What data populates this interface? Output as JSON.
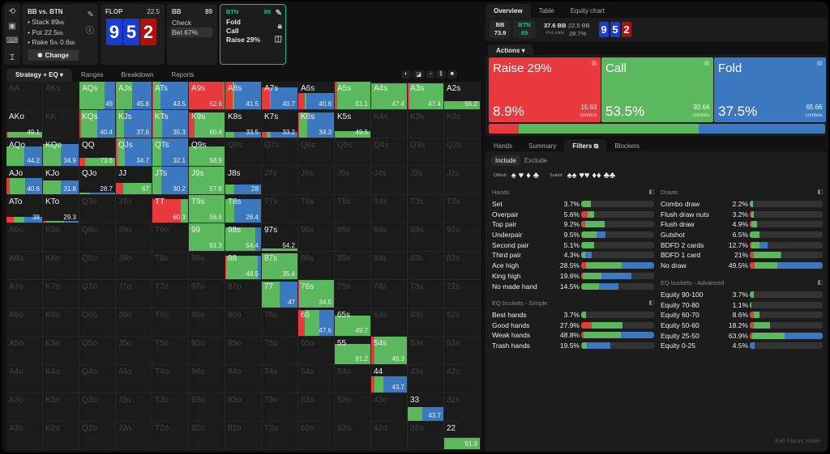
{
  "colors": {
    "raise": "#e8393f",
    "call": "#5cb85c",
    "fold": "#3b78c0",
    "accent": "#1bb597"
  },
  "header": {
    "spot_title": "BB vs. BTN",
    "stack": "Stack 89",
    "stack_unit": "bb",
    "pot": "Pot 22.5",
    "pot_unit": "bb",
    "rake": "Rake 5",
    "rake_pct": "%",
    "rake_val": " 0.6",
    "rake_unit": "bb",
    "change_label": "Change",
    "street": "FLOP",
    "street_pot": "22.5",
    "board": [
      {
        "rank": "9",
        "suit": "diamond"
      },
      {
        "rank": "5",
        "suit": "diamond"
      },
      {
        "rank": "2",
        "suit": "heart"
      }
    ],
    "bb": {
      "name": "BB",
      "stack": "89",
      "actions": [
        "Check",
        "Bet 67%"
      ],
      "selected": "Bet 67%"
    },
    "btn": {
      "name": "BTN",
      "stack": "89",
      "actions": [
        "Fold",
        "Call",
        "Raise 29%"
      ]
    }
  },
  "tabs": [
    "Strategy + EQ",
    "Ranges",
    "Breakdown",
    "Reports"
  ],
  "matrix": {
    "rows": [
      [
        "AA",
        "AKs",
        "AQs",
        "AJs",
        "ATs",
        "A9s",
        "A8s",
        "A7s",
        "A6s",
        "A5s",
        "A4s",
        "A3s",
        "A2s"
      ],
      [
        "AKo",
        "KK",
        "KQs",
        "KJs",
        "KTs",
        "K9s",
        "K8s",
        "K7s",
        "K6s",
        "K5s",
        "K4s",
        "K3s",
        "K2s"
      ],
      [
        "AQo",
        "KQo",
        "QQ",
        "QJs",
        "QTs",
        "Q9s",
        "Q8s",
        "Q7s",
        "Q6s",
        "Q5s",
        "Q4s",
        "Q3s",
        "Q2s"
      ],
      [
        "AJo",
        "KJo",
        "QJo",
        "JJ",
        "JTs",
        "J9s",
        "J8s",
        "J7s",
        "J6s",
        "J5s",
        "J4s",
        "J3s",
        "J2s"
      ],
      [
        "ATo",
        "KTo",
        "QTo",
        "JTo",
        "TT",
        "T9s",
        "T8s",
        "T7s",
        "T6s",
        "T5s",
        "T4s",
        "T3s",
        "T2s"
      ],
      [
        "A9o",
        "K9o",
        "Q9o",
        "J9o",
        "T9o",
        "99",
        "98s",
        "97s",
        "96s",
        "95s",
        "94s",
        "93s",
        "92s"
      ],
      [
        "A8o",
        "K8o",
        "Q8o",
        "J8o",
        "T8o",
        "98o",
        "88",
        "87s",
        "86s",
        "85s",
        "84s",
        "83s",
        "82s"
      ],
      [
        "A7o",
        "K7o",
        "Q7o",
        "J7o",
        "T7o",
        "97o",
        "87o",
        "77",
        "76s",
        "75s",
        "74s",
        "73s",
        "72s"
      ],
      [
        "A6o",
        "K6o",
        "Q6o",
        "J6o",
        "T6o",
        "96o",
        "86o",
        "76o",
        "66",
        "65s",
        "64s",
        "63s",
        "62s"
      ],
      [
        "A5o",
        "K5o",
        "Q5o",
        "J5o",
        "T5o",
        "95o",
        "85o",
        "75o",
        "65o",
        "55",
        "54s",
        "53s",
        "52s"
      ],
      [
        "A4o",
        "K4o",
        "Q4o",
        "J4o",
        "T4o",
        "94o",
        "84o",
        "74o",
        "64o",
        "54o",
        "44",
        "43s",
        "42s"
      ],
      [
        "A3o",
        "K3o",
        "Q3o",
        "J3o",
        "T3o",
        "93o",
        "83o",
        "73o",
        "63o",
        "53o",
        "43o",
        "33",
        "32s"
      ],
      [
        "A2o",
        "K2o",
        "Q2o",
        "J2o",
        "T2o",
        "92o",
        "82o",
        "72o",
        "62o",
        "52o",
        "42o",
        "32o",
        "22"
      ]
    ],
    "hands": {
      "AQs": {
        "w": 1,
        "mix": [
          0,
          0.7,
          0.3
        ],
        "eq": "49"
      },
      "AJs": {
        "w": 1,
        "mix": [
          0,
          0.45,
          0.55
        ],
        "eq": "45.8"
      },
      "ATs": {
        "w": 1,
        "mix": [
          0.02,
          0.2,
          0.78
        ],
        "eq": "43.5"
      },
      "A9s": {
        "w": 1,
        "mix": [
          0.97,
          0.03,
          0
        ],
        "eq": "62.6"
      },
      "A8s": {
        "w": 1,
        "mix": [
          0.2,
          0.06,
          0.74
        ],
        "eq": "41.5"
      },
      "A7s": {
        "w": 0.8,
        "mix": [
          0.22,
          0.03,
          0.75
        ],
        "eq": "40.7"
      },
      "A6s": {
        "w": 0.6,
        "mix": [
          0.18,
          0.05,
          0.77
        ],
        "eq": "40.6"
      },
      "A5s": {
        "w": 1,
        "mix": [
          0.07,
          0.93,
          0
        ],
        "eq": "51.1"
      },
      "A4s": {
        "w": 0.93,
        "mix": [
          0,
          1,
          0
        ],
        "eq": "47.4"
      },
      "A3s": {
        "w": 0.93,
        "mix": [
          0.05,
          0.95,
          0
        ],
        "eq": "47.4"
      },
      "A2s": {
        "w": 0.3,
        "mix": [
          0,
          1,
          0
        ],
        "eq": "55.2"
      },
      "AKo": {
        "w": 0.2,
        "mix": [
          0.04,
          0.96,
          0
        ],
        "eq": "49.1"
      },
      "KQs": {
        "w": 1,
        "mix": [
          0.05,
          0.45,
          0.5
        ],
        "eq": "40.4"
      },
      "KJs": {
        "w": 1,
        "mix": [
          0.02,
          0.2,
          0.78
        ],
        "eq": "37.6"
      },
      "KTs": {
        "w": 1,
        "mix": [
          0.03,
          0.25,
          0.72
        ],
        "eq": "35.3"
      },
      "K9s": {
        "w": 0.9,
        "mix": [
          0.15,
          0.85,
          0
        ],
        "eq": "60.4"
      },
      "K8s": {
        "w": 0.2,
        "mix": [
          0,
          0.25,
          0.75
        ],
        "eq": "33.5"
      },
      "K7s": {
        "w": 0.2,
        "mix": [
          0.14,
          0.1,
          0.76
        ],
        "eq": "33.2"
      },
      "K6s": {
        "w": 0.9,
        "mix": [
          0.03,
          0.22,
          0.75
        ],
        "eq": "34.3"
      },
      "K5s": {
        "w": 0.25,
        "mix": [
          0,
          1,
          0
        ],
        "eq": "49.5"
      },
      "AQo": {
        "w": 0.7,
        "mix": [
          0,
          0.5,
          0.5
        ],
        "eq": "44.2"
      },
      "KQo": {
        "w": 0.8,
        "mix": [
          0,
          0.5,
          0.5
        ],
        "eq": "34.9"
      },
      "QQ": {
        "w": 0.3,
        "mix": [
          0.15,
          0.85,
          0
        ],
        "eq": "73.6"
      },
      "QJs": {
        "w": 1,
        "mix": [
          0.05,
          0.2,
          0.75
        ],
        "eq": "34.7"
      },
      "QTs": {
        "w": 1,
        "mix": [
          0,
          0.25,
          0.75
        ],
        "eq": "32.1"
      },
      "Q9s": {
        "w": 0.7,
        "mix": [
          0,
          1,
          0
        ],
        "eq": "58.9"
      },
      "AJo": {
        "w": 0.6,
        "mix": [
          0.08,
          0.45,
          0.47
        ],
        "eq": "40.6"
      },
      "KJo": {
        "w": 0.5,
        "mix": [
          0,
          0.5,
          0.5
        ],
        "eq": "31.8"
      },
      "QJo": {
        "w": 0.05,
        "mix": [
          0,
          0.3,
          0.7
        ],
        "eq": "28.7"
      },
      "JJ": {
        "w": 0.4,
        "mix": [
          0.2,
          0.8,
          0
        ],
        "eq": "67"
      },
      "JTs": {
        "w": 1,
        "mix": [
          0,
          0.25,
          0.75
        ],
        "eq": "30.2"
      },
      "J9s": {
        "w": 1,
        "mix": [
          0,
          1,
          0
        ],
        "eq": "57.8"
      },
      "J8s": {
        "w": 0.35,
        "mix": [
          0,
          0.25,
          0.75
        ],
        "eq": "28"
      },
      "ATo": {
        "w": 0.2,
        "mix": [
          0.2,
          0.3,
          0.5
        ],
        "eq": "38"
      },
      "KTo": {
        "w": 0.05,
        "mix": [
          0.1,
          0.5,
          0.4
        ],
        "eq": "29.3"
      },
      "TT": {
        "w": 0.85,
        "mix": [
          0.8,
          0.2,
          0
        ],
        "eq": "60.3"
      },
      "T9s": {
        "w": 1,
        "mix": [
          0,
          1,
          0
        ],
        "eq": "56.5"
      },
      "T8s": {
        "w": 0.85,
        "mix": [
          0,
          0.25,
          0.75
        ],
        "eq": "26.4"
      },
      "99": {
        "w": 1,
        "mix": [
          0,
          1,
          0
        ],
        "eq": "91.3"
      },
      "98s": {
        "w": 0.85,
        "mix": [
          0,
          0.85,
          0.15
        ],
        "eq": "54.4"
      },
      "97s": {
        "w": 0.1,
        "mix": [
          0,
          1,
          0
        ],
        "eq": "54.2"
      },
      "88": {
        "w": 0.85,
        "mix": [
          0.02,
          0.88,
          0.1
        ],
        "eq": "48.5"
      },
      "87s": {
        "w": 0.95,
        "mix": [
          0,
          1,
          0
        ],
        "eq": "35.4"
      },
      "77": {
        "w": 0.95,
        "mix": [
          0,
          0.5,
          0.5
        ],
        "eq": "47"
      },
      "76s": {
        "w": 1,
        "mix": [
          0.02,
          0.98,
          0
        ],
        "eq": "34.5"
      },
      "66": {
        "w": 0.95,
        "mix": [
          0.18,
          0.4,
          0.42
        ],
        "eq": "47.6"
      },
      "65s": {
        "w": 0.75,
        "mix": [
          0,
          1,
          0
        ],
        "eq": "49.7"
      },
      "55": {
        "w": 0.75,
        "mix": [
          0,
          1,
          0
        ],
        "eq": "91.2"
      },
      "54s": {
        "w": 1,
        "mix": [
          0.08,
          0.92,
          0
        ],
        "eq": "49.3"
      },
      "44": {
        "w": 0.6,
        "mix": [
          0.08,
          0.25,
          0.67
        ],
        "eq": "43.7"
      },
      "33": {
        "w": 0.5,
        "mix": [
          0,
          0.4,
          0.6
        ],
        "eq": "43.7"
      },
      "22": {
        "w": 0.4,
        "mix": [
          0,
          1,
          0
        ],
        "eq": "91.3"
      }
    }
  },
  "right": {
    "tabs": [
      "Overview",
      "Table",
      "Equity chart"
    ],
    "bb_chip": {
      "name": "BB",
      "value": "73.9"
    },
    "btn_chip": {
      "name": "BTN",
      "value": "89"
    },
    "to_call": "37.6 BB",
    "pot": "22.5 BB",
    "pot_odds_label": "Pot odds:",
    "pot_odds": "28.7%",
    "actions_label": "Actions",
    "actions": [
      {
        "name": "Raise 29%",
        "pct": "8.9%",
        "combos": "15.63",
        "combos_label": "combos",
        "freq": 8.9
      },
      {
        "name": "Call",
        "pct": "53.5%",
        "combos": "93.64",
        "combos_label": "combos",
        "freq": 53.5
      },
      {
        "name": "Fold",
        "pct": "37.5%",
        "combos": "65.66",
        "combos_label": "combos",
        "freq": 37.5
      }
    ],
    "bottom_tabs": [
      "Hands",
      "Summary",
      "Filters",
      "Blockers"
    ],
    "include": "Include",
    "exclude": "Exclude",
    "offsuit_label": "Offsuit",
    "suited_label": "Suited",
    "suits": [
      "♠",
      "♥",
      "♦",
      "♣"
    ],
    "sections": {
      "hands": {
        "title": "Hands",
        "rows": [
          {
            "label": "Set",
            "value": "3.7%",
            "mix": [
              0,
              0.13,
              0
            ]
          },
          {
            "label": "Overpair",
            "value": "5.6%",
            "mix": [
              0.09,
              0.09,
              0
            ]
          },
          {
            "label": "Top pair",
            "value": "9.2%",
            "mix": [
              0.06,
              0.26,
              0
            ]
          },
          {
            "label": "Underpair",
            "value": "9.5%",
            "mix": [
              0.01,
              0.2,
              0.12
            ]
          },
          {
            "label": "Second pair",
            "value": "5.1%",
            "mix": [
              0.01,
              0.17,
              0
            ]
          },
          {
            "label": "Third pair",
            "value": "4.3%",
            "mix": [
              0,
              0.05,
              0.09
            ]
          },
          {
            "label": "Ace high",
            "value": "28.5%",
            "mix": [
              0.07,
              0.49,
              0.44
            ]
          },
          {
            "label": "King high",
            "value": "19.6%",
            "mix": [
              0.02,
              0.26,
              0.41
            ]
          },
          {
            "label": "No made hand",
            "value": "14.5%",
            "mix": [
              0.01,
              0.24,
              0.26
            ]
          }
        ]
      },
      "eq_simple": {
        "title": "EQ buckets - Simple",
        "rows": [
          {
            "label": "Best hands",
            "value": "3.7%",
            "mix": [
              0,
              0.07,
              0
            ]
          },
          {
            "label": "Good hands",
            "value": "27.9%",
            "mix": [
              0.14,
              0.43,
              0
            ]
          },
          {
            "label": "Weak hands",
            "value": "48.8%",
            "mix": [
              0.03,
              0.51,
              0.46
            ]
          },
          {
            "label": "Trash hands",
            "value": "19.5%",
            "mix": [
              0.01,
              0.07,
              0.32
            ]
          }
        ]
      },
      "draws": {
        "title": "Draws",
        "rows": [
          {
            "label": "Combo draw",
            "value": "2.2%",
            "mix": [
              0,
              0.04,
              0
            ]
          },
          {
            "label": "Flush draw nuts",
            "value": "3.2%",
            "mix": [
              0.02,
              0.04,
              0
            ]
          },
          {
            "label": "Flush draw",
            "value": "4.9%",
            "mix": [
              0.02,
              0.08,
              0
            ]
          },
          {
            "label": "Gutshot",
            "value": "6.5%",
            "mix": [
              0,
              0.13,
              0
            ]
          },
          {
            "label": "BDFD 2 cards",
            "value": "12.7%",
            "mix": [
              0.02,
              0.11,
              0.12
            ]
          },
          {
            "label": "BDFD 1 card",
            "value": "21%",
            "mix": [
              0.06,
              0.36,
              0.01
            ]
          },
          {
            "label": "No draw",
            "value": "49.5%",
            "mix": [
              0.07,
              0.31,
              0.62
            ]
          }
        ]
      },
      "eq_adv": {
        "title": "EQ buckets - Advanced",
        "rows": [
          {
            "label": "Equity 90-100",
            "value": "3.7%",
            "mix": [
              0,
              0.06,
              0
            ]
          },
          {
            "label": "Equity 70-80",
            "value": "1.1%",
            "mix": [
              0,
              0.02,
              0
            ]
          },
          {
            "label": "Equity 60-70",
            "value": "8.6%",
            "mix": [
              0.05,
              0.08,
              0
            ]
          },
          {
            "label": "Equity 50-60",
            "value": "18.2%",
            "mix": [
              0.05,
              0.23,
              0
            ]
          },
          {
            "label": "Equity 25-50",
            "value": "63.9%",
            "mix": [
              0.03,
              0.45,
              0.52
            ]
          },
          {
            "label": "Equity 0-25",
            "value": "4.5%",
            "mix": [
              0,
              0,
              0.07
            ]
          }
        ]
      }
    },
    "exit_focus": "Exit Focus mode"
  }
}
